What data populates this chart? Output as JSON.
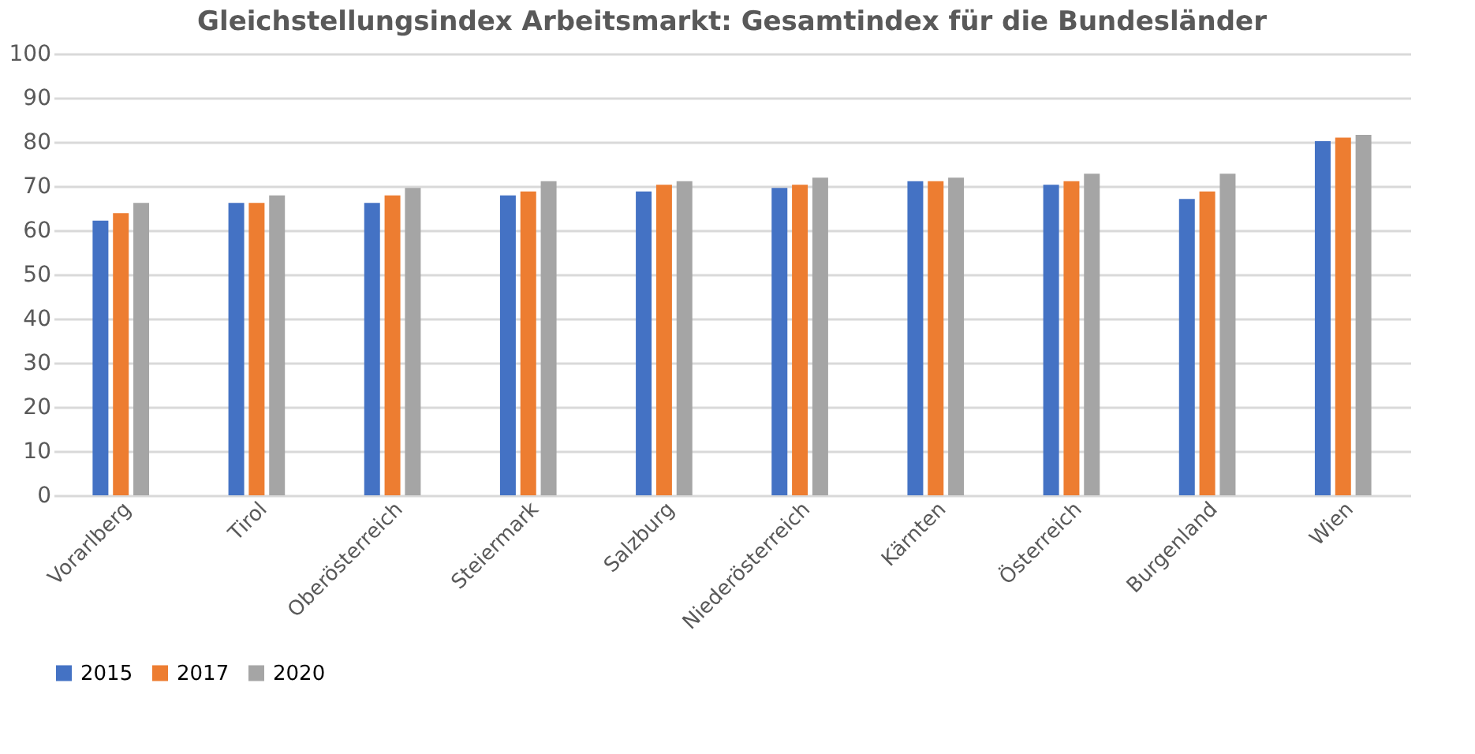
{
  "chart_data": {
    "type": "bar",
    "title": "Gleichstellungsindex Arbeitsmarkt: Gesamtindex für die Bundesländer",
    "categories": [
      "Vorarlberg",
      "Tirol",
      "Oberösterreich",
      "Steiermark",
      "Salzburg",
      "Niederösterreich",
      "Kärnten",
      "Österreich",
      "Burgenland",
      "Wien"
    ],
    "series": [
      {
        "name": "2015",
        "color": "#4472c4",
        "values": [
          62.2,
          66.2,
          66.2,
          67.9,
          68.8,
          69.6,
          71.1,
          70.3,
          67.1,
          80.2
        ]
      },
      {
        "name": "2017",
        "color": "#ed7d31",
        "values": [
          63.9,
          66.2,
          67.9,
          68.8,
          70.3,
          70.3,
          71.1,
          71.1,
          68.8,
          81.0
        ]
      },
      {
        "name": "2020",
        "color": "#a5a5a5",
        "values": [
          66.2,
          67.9,
          69.6,
          71.1,
          71.1,
          71.9,
          71.9,
          72.8,
          72.8,
          81.6
        ]
      }
    ],
    "ylim": [
      0,
      100
    ],
    "yticks": [
      0,
      10,
      20,
      30,
      40,
      50,
      60,
      70,
      80,
      90,
      100
    ],
    "grid": "y",
    "legend": "bottom"
  }
}
